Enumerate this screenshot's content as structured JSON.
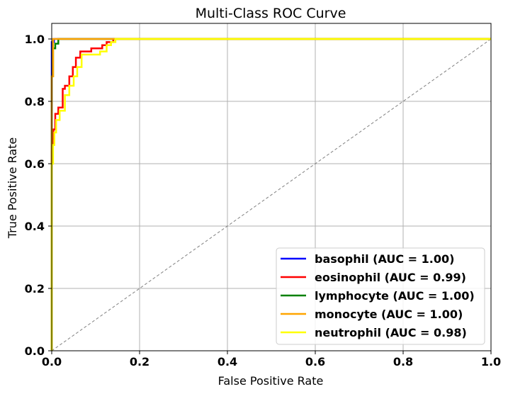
{
  "chart_data": {
    "type": "line",
    "title": "Multi-Class ROC Curve",
    "xlabel": "False Positive Rate",
    "ylabel": "True Positive Rate",
    "xlim": [
      0.0,
      1.0
    ],
    "ylim": [
      0.0,
      1.05
    ],
    "x_ticks": [
      "0.0",
      "0.2",
      "0.4",
      "0.6",
      "0.8",
      "1.0"
    ],
    "y_ticks": [
      "0.0",
      "0.2",
      "0.4",
      "0.6",
      "0.8",
      "1.0"
    ],
    "grid": true,
    "legend_position": "bottom-right",
    "reference_line": {
      "x": [
        0,
        1
      ],
      "y": [
        0,
        1
      ],
      "color": "#808080",
      "style": "dashed"
    },
    "series": [
      {
        "name": "basophil (AUC = 1.00)",
        "color": "#0000ff",
        "x": [
          0.0,
          0.0,
          0.0,
          0.005,
          0.005,
          1.0
        ],
        "y": [
          0.0,
          0.9,
          0.99,
          0.99,
          1.0,
          1.0
        ]
      },
      {
        "name": "eosinophil (AUC = 0.99)",
        "color": "#ff0000",
        "x": [
          0.0,
          0.0,
          0.002,
          0.002,
          0.004,
          0.004,
          0.008,
          0.008,
          0.015,
          0.015,
          0.025,
          0.025,
          0.03,
          0.03,
          0.04,
          0.04,
          0.048,
          0.048,
          0.055,
          0.055,
          0.065,
          0.065,
          0.09,
          0.09,
          0.115,
          0.115,
          0.125,
          0.125,
          0.14,
          0.14,
          1.0
        ],
        "y": [
          0.0,
          0.64,
          0.64,
          0.68,
          0.68,
          0.71,
          0.71,
          0.76,
          0.76,
          0.78,
          0.78,
          0.84,
          0.84,
          0.85,
          0.85,
          0.88,
          0.88,
          0.91,
          0.91,
          0.94,
          0.94,
          0.96,
          0.96,
          0.97,
          0.97,
          0.98,
          0.98,
          0.99,
          0.99,
          1.0,
          1.0
        ]
      },
      {
        "name": "lymphocyte (AUC = 1.00)",
        "color": "#008000",
        "x": [
          0.0,
          0.0,
          0.003,
          0.003,
          0.008,
          0.008,
          0.015,
          0.015,
          1.0
        ],
        "y": [
          0.0,
          0.88,
          0.88,
          0.97,
          0.97,
          0.985,
          0.985,
          1.0,
          1.0
        ]
      },
      {
        "name": "monocyte (AUC = 1.00)",
        "color": "#ffa500",
        "x": [
          0.0,
          0.0,
          0.003,
          0.003,
          1.0
        ],
        "y": [
          0.0,
          0.88,
          0.88,
          1.0,
          1.0
        ]
      },
      {
        "name": "neutrophil (AUC = 0.98)",
        "color": "#ffff00",
        "x": [
          0.0,
          0.0,
          0.003,
          0.003,
          0.006,
          0.006,
          0.01,
          0.01,
          0.018,
          0.018,
          0.03,
          0.03,
          0.04,
          0.04,
          0.05,
          0.05,
          0.058,
          0.058,
          0.068,
          0.068,
          0.11,
          0.11,
          0.125,
          0.125,
          0.135,
          0.135,
          0.145,
          0.145,
          1.0
        ],
        "y": [
          0.0,
          0.6,
          0.6,
          0.66,
          0.66,
          0.7,
          0.7,
          0.74,
          0.74,
          0.77,
          0.77,
          0.82,
          0.82,
          0.85,
          0.85,
          0.88,
          0.88,
          0.91,
          0.91,
          0.95,
          0.95,
          0.96,
          0.96,
          0.98,
          0.98,
          0.99,
          0.99,
          1.0,
          1.0
        ]
      }
    ]
  }
}
